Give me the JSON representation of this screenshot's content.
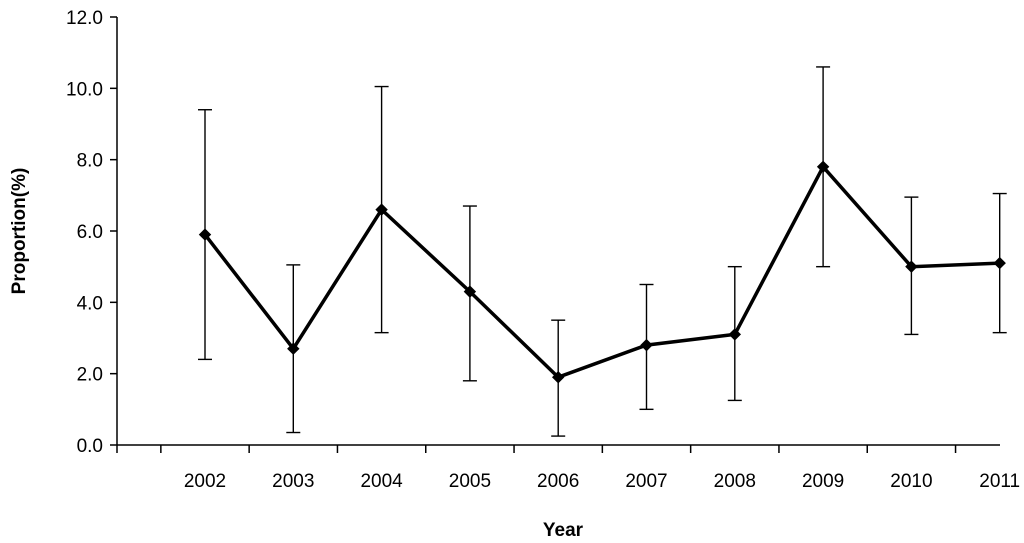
{
  "chart_data": {
    "type": "line",
    "title": "",
    "xlabel": "Year",
    "ylabel": "Proportion(%)",
    "ylim": [
      0,
      12
    ],
    "yticks": [
      "0.0",
      "2.0",
      "4.0",
      "6.0",
      "8.0",
      "10.0",
      "12.0"
    ],
    "categories": [
      "2002",
      "2003",
      "2004",
      "2005",
      "2006",
      "2007",
      "2008",
      "2009",
      "2010",
      "2011"
    ],
    "grid": false,
    "legend": "none",
    "series": [
      {
        "values": [
          5.9,
          2.7,
          6.6,
          4.3,
          1.9,
          2.8,
          3.1,
          7.8,
          5.0,
          5.1
        ],
        "error_low": [
          2.4,
          0.35,
          3.15,
          1.8,
          0.25,
          1.0,
          1.25,
          5.0,
          3.1,
          3.15
        ],
        "error_high": [
          9.4,
          5.05,
          10.05,
          6.7,
          3.5,
          4.5,
          5.0,
          10.6,
          6.95,
          7.05
        ],
        "color": "#000000",
        "marker": "diamond"
      }
    ]
  }
}
